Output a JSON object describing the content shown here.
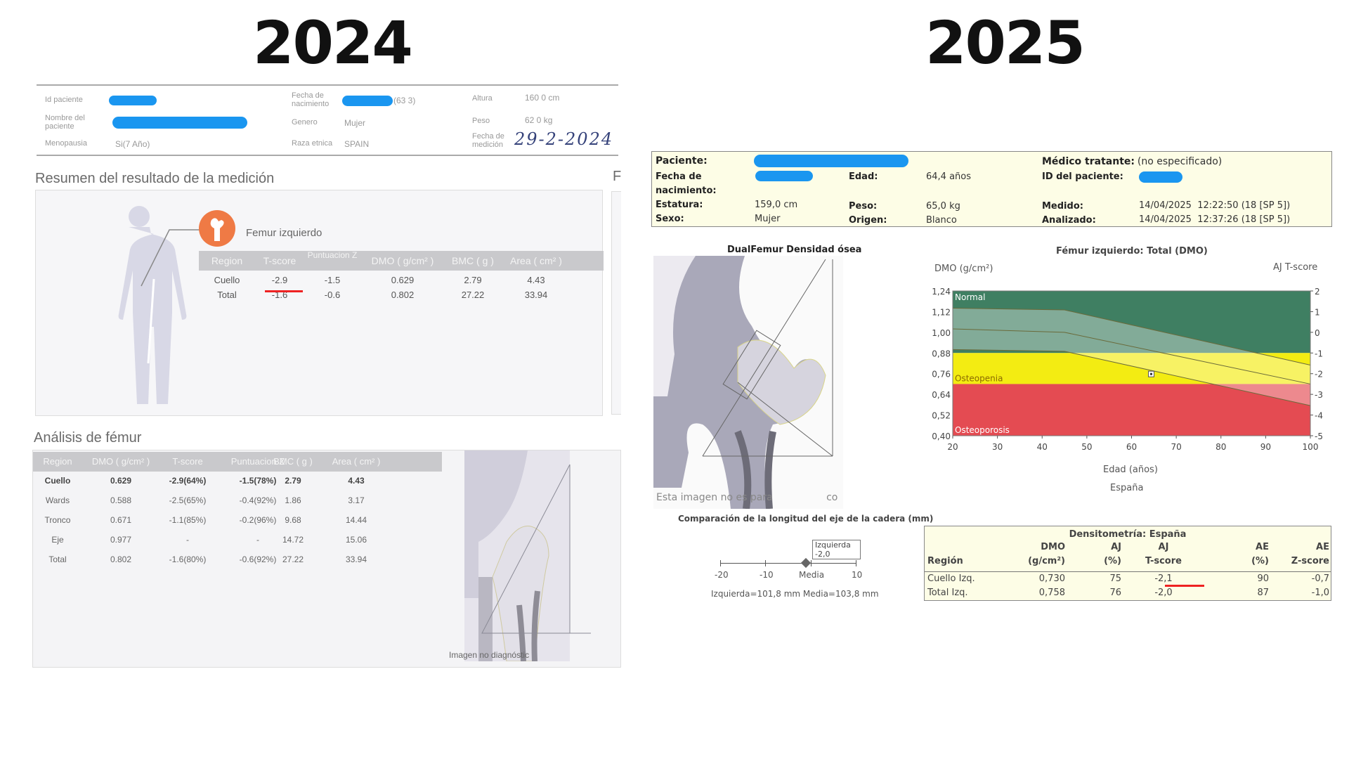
{
  "years": {
    "left": "2024",
    "right": "2025"
  },
  "report_2024": {
    "header": {
      "id_label": "Id paciente",
      "name_label": "Nombre del paciente",
      "menopause_label": "Menopausia",
      "menopause_value": "Si(7 Año)",
      "dob_label": "Fecha de nacimiento",
      "dob_value_suffix": "(63 3)",
      "gender_label": "Genero",
      "gender_value": "Mujer",
      "ethnicity_label": "Raza etnica",
      "ethnicity_value": "SPAIN",
      "height_label": "Altura",
      "height_value": "160 0 cm",
      "weight_label": "Peso",
      "weight_value": "62 0 kg",
      "date_label": "Fecha de medición",
      "date_handwritten": "29-2-2024"
    },
    "summary": {
      "title": "Resumen del resultado de la medición",
      "site": "Femur izquierdo",
      "next_panel_letter": "F",
      "columns": [
        "Region",
        "T-score",
        "Puntuacion Z",
        "DMO ( g/cm² )",
        "BMC ( g )",
        "Area ( cm² )"
      ],
      "rows": [
        [
          "Cuello",
          "-2.9",
          "-1.5",
          "0.629",
          "2.79",
          "4.43"
        ],
        [
          "Total",
          "-1.6",
          "-0.6",
          "0.802",
          "27.22",
          "33.94"
        ]
      ],
      "highlight_color": "#ee2222"
    },
    "analysis": {
      "title": "Análisis de fémur",
      "columns": [
        "Region",
        "DMO ( g/cm² )",
        "T-score",
        "Puntuacion Z",
        "BMC ( g )",
        "Area ( cm² )"
      ],
      "rows": [
        [
          "Cuello",
          "0.629",
          "-2.9(64%)",
          "-1.5(78%)",
          "2.79",
          "4.43"
        ],
        [
          "Wards",
          "0.588",
          "-2.5(65%)",
          "-0.4(92%)",
          "1.86",
          "3.17"
        ],
        [
          "Tronco",
          "0.671",
          "-1.1(85%)",
          "-0.2(96%)",
          "9.68",
          "14.44"
        ],
        [
          "Eje",
          "0.977",
          "-",
          "-",
          "14.72",
          "15.06"
        ],
        [
          "Total",
          "0.802",
          "-1.6(80%)",
          "-0.6(92%)",
          "27.22",
          "33.94"
        ]
      ],
      "image_caption": "Imagen no diagnóstic"
    }
  },
  "report_2025": {
    "header": {
      "patient_label": "Paciente:",
      "dob_label": "Fecha de nacimiento:",
      "height_label": "Estatura:",
      "height_value": "159,0 cm",
      "sex_label": "Sexo:",
      "sex_value": "Mujer",
      "age_label": "Edad:",
      "age_value": "64,4 años",
      "weight_label": "Peso:",
      "weight_value": "65,0 kg",
      "origin_label": "Origen:",
      "origin_value": "Blanco",
      "doctor_label": "Médico tratante:",
      "doctor_value": "(no especificado)",
      "patient_id_label": "ID del paciente:",
      "measured_label": "Medido:",
      "measured_value": "14/04/2025  12:22:50 (18 [SP 5])",
      "analyzed_label": "Analizado:",
      "analyzed_value": "14/04/2025  12:37:26 (18 [SP 5])"
    },
    "image": {
      "title": "DualFemur Densidad ósea",
      "caption": "Esta imagen no es para",
      "caption_tail": "co"
    },
    "hip_axis": {
      "title": "Comparación de la longitud del eje de la cadera (mm)",
      "ticks": [
        "-20",
        "-10",
        "Media",
        "10"
      ],
      "marker_value": -2.0,
      "marker_label": "Izquierda -2,0",
      "footer": "Izquierda=101,8 mm  Media=103,8 mm"
    },
    "table": {
      "title": "Densitometría: España",
      "columns": [
        [
          "",
          "Región"
        ],
        [
          "DMO",
          "(g/cm²)"
        ],
        [
          "AJ",
          "(%)"
        ],
        [
          "AJ",
          "T-score"
        ],
        [
          "AE",
          "(%)"
        ],
        [
          "AE",
          "Z-score"
        ]
      ],
      "rows": [
        [
          "Cuello Izq.",
          "0,730",
          "75",
          "-2,1",
          "90",
          "-0,7"
        ],
        [
          "Total Izq.",
          "0,758",
          "76",
          "-2,0",
          "87",
          "-1,0"
        ]
      ]
    }
  },
  "chart_data": {
    "type": "area",
    "title": "Fémur izquierdo: Total (DMO)",
    "ylabel": "DMO (g/cm²)",
    "y2label": "AJ T-score",
    "xlabel": "Edad (años)",
    "subtitle": "España",
    "xlim": [
      20,
      100
    ],
    "ylim": [
      0.4,
      1.24
    ],
    "x_ticks": [
      "20",
      "30",
      "40",
      "50",
      "60",
      "70",
      "80",
      "90",
      "100"
    ],
    "y_ticks": [
      "1,24",
      "1,12",
      "1,00",
      "0,88",
      "0,76",
      "0,64",
      "0,52",
      "0,40"
    ],
    "y2_ticks": [
      "2",
      "1",
      "0",
      "-1",
      "-2",
      "-3",
      "-4",
      "-5"
    ],
    "bands": [
      {
        "name": "Normal",
        "from": 0.88,
        "to": 1.24,
        "color": "#3f7f62"
      },
      {
        "name": "Osteopenia",
        "from": 0.7,
        "to": 0.88,
        "color": "#f3ec12"
      },
      {
        "name": "Osteoporosis",
        "from": 0.4,
        "to": 0.7,
        "color": "#e44b52"
      }
    ],
    "reference_lines": {
      "plus_1sd": [
        [
          20,
          1.14
        ],
        [
          45,
          1.13
        ],
        [
          100,
          0.81
        ]
      ],
      "mean": [
        [
          20,
          1.02
        ],
        [
          45,
          1.0
        ],
        [
          100,
          0.7
        ]
      ],
      "minus_1sd": [
        [
          20,
          0.9
        ],
        [
          45,
          0.89
        ],
        [
          100,
          0.575
        ]
      ]
    },
    "point": {
      "x": 64.4,
      "y": 0.758
    }
  }
}
